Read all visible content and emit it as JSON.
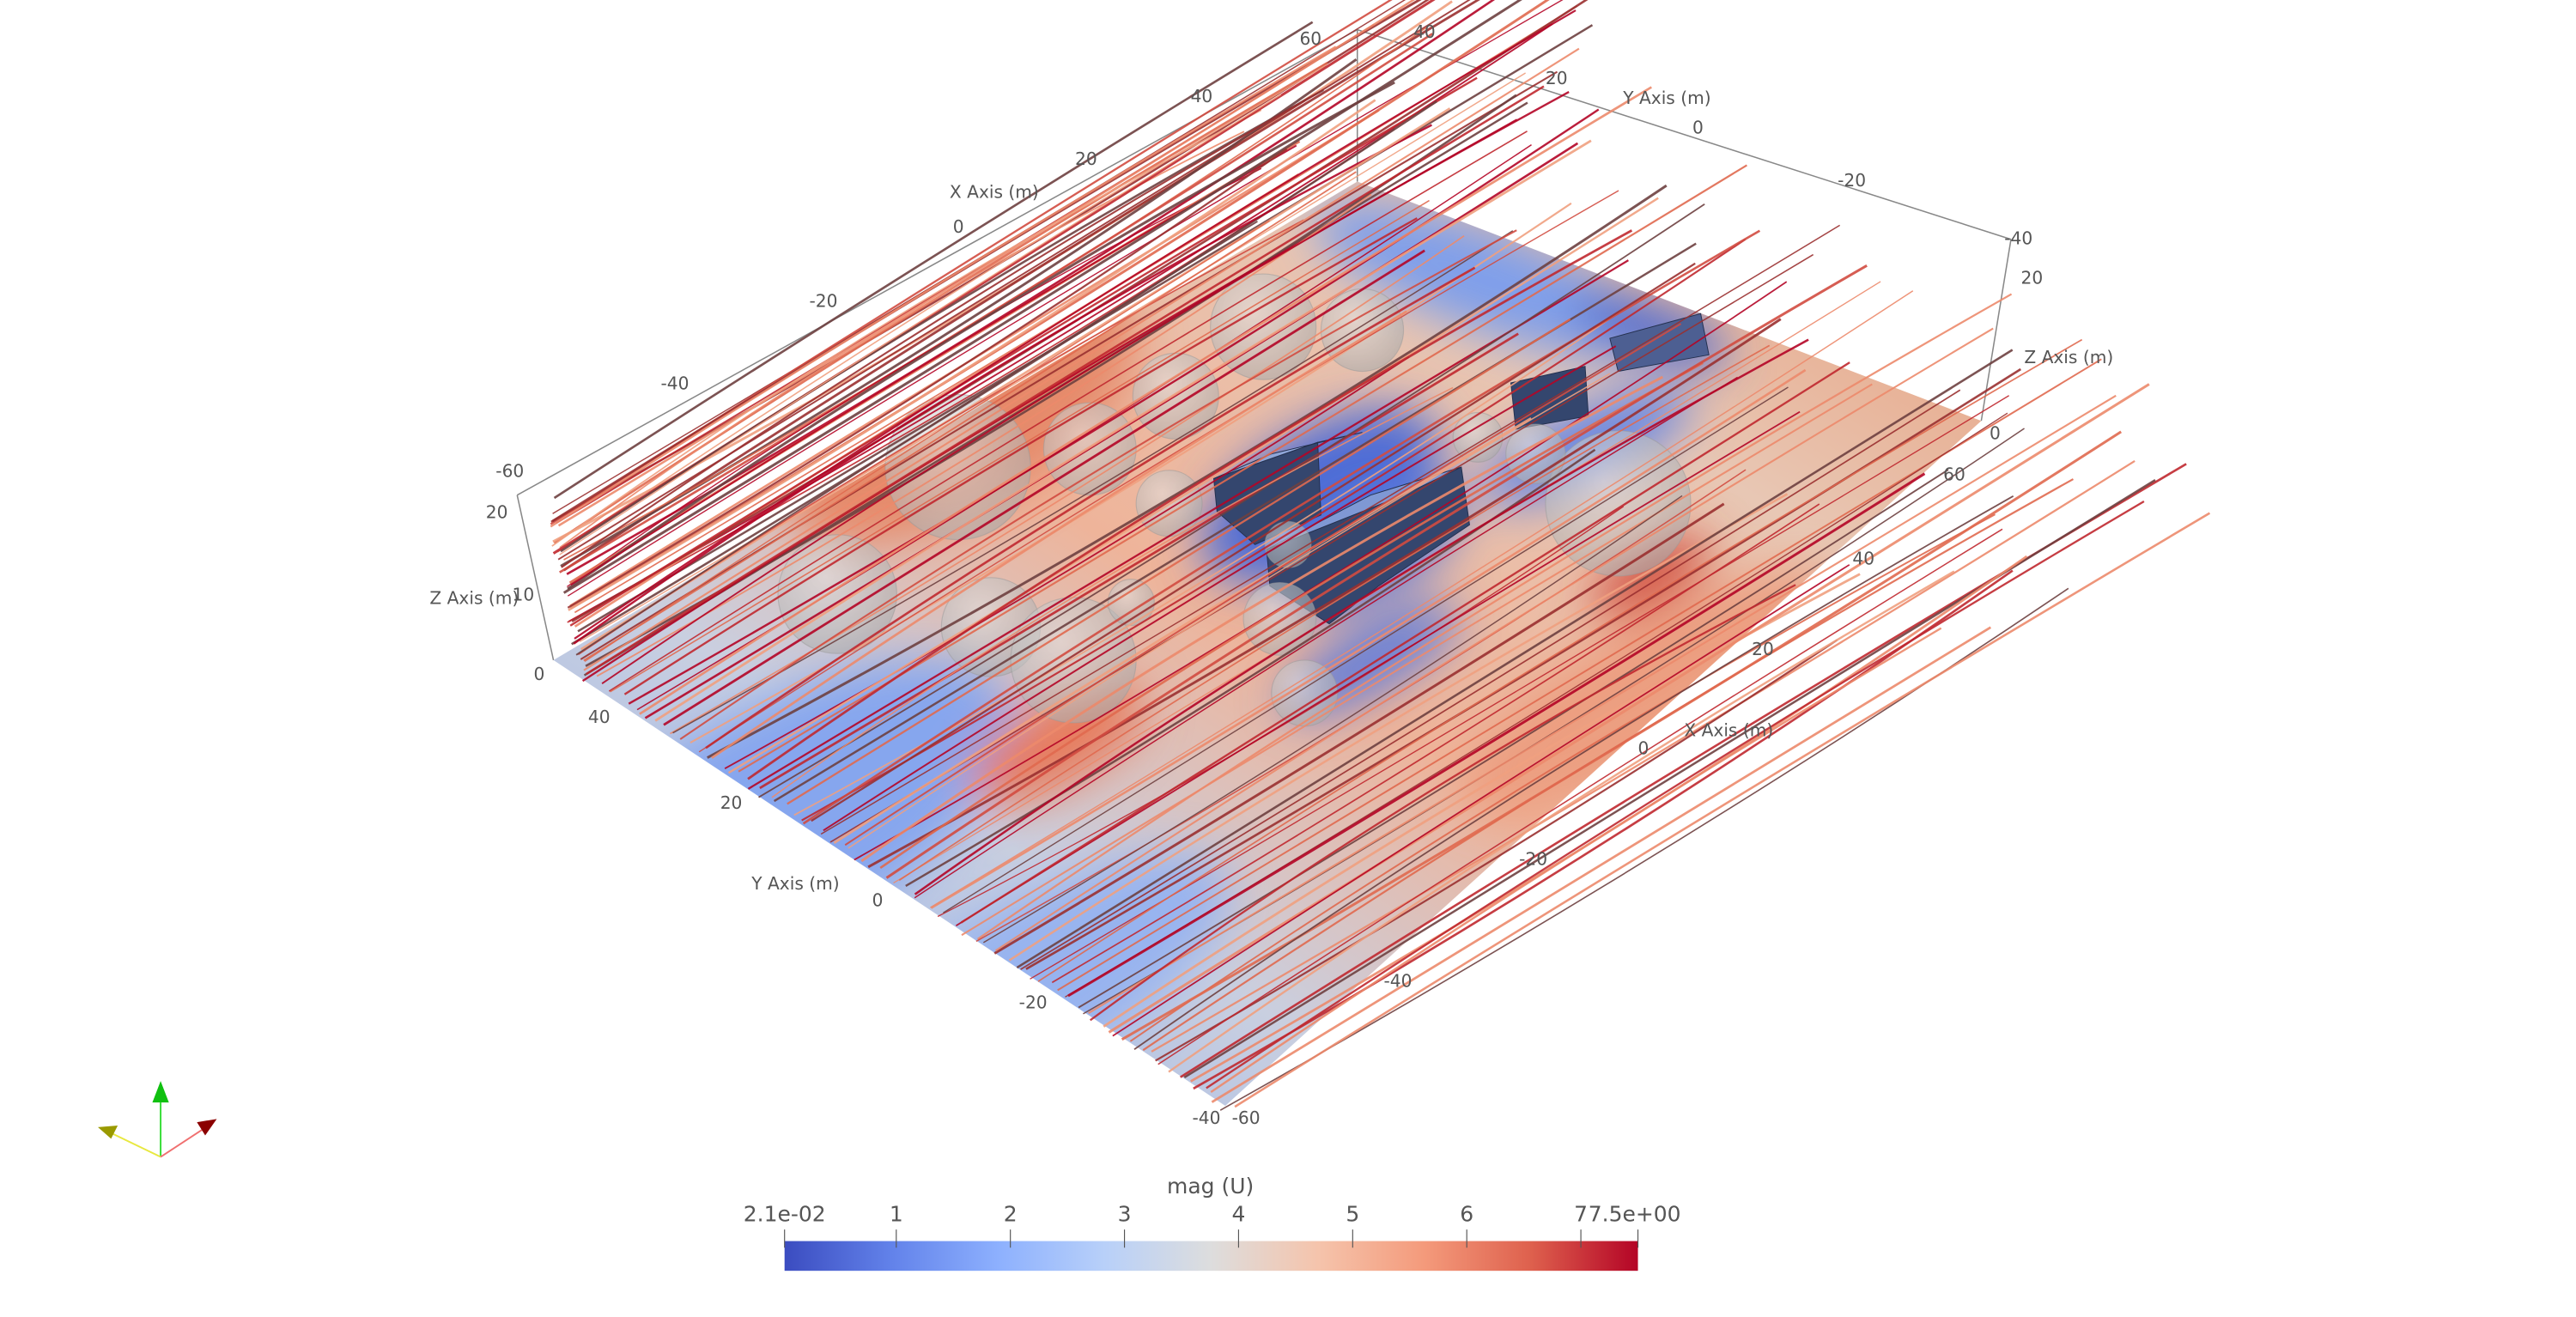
{
  "viewer": {
    "axes": {
      "x_title": "X Axis (m)",
      "y_title": "Y Axis (m)",
      "z_title": "Z Axis (m)",
      "x_back_ticks": [
        "-60",
        "-40",
        "-20",
        "0",
        "20",
        "40",
        "60"
      ],
      "y_back_ticks": [
        "40",
        "20",
        "0",
        "-20",
        "-40"
      ],
      "z_right_ticks": [
        "20",
        "0"
      ],
      "z_left_ticks": [
        "20",
        "10",
        "0"
      ],
      "y_front_ticks": [
        "40",
        "20",
        "0",
        "-20",
        "-40"
      ],
      "x_front_ticks": [
        "-60",
        "-40",
        "-20",
        "0",
        "20",
        "40",
        "60"
      ]
    },
    "orientation_widget": {
      "x_color": "#8b0000",
      "y_color": "#9a9a00",
      "z_color": "#00c000"
    },
    "sphere_color": "#c8c8c8",
    "building_color": "#34466e"
  },
  "colorbar": {
    "title": "mag (U)",
    "min": 0.021,
    "max": 7.5,
    "min_label": "2.1e-02",
    "max_label": "7.5e+00",
    "ticks": [
      1,
      2,
      3,
      4,
      5,
      6,
      7
    ],
    "tick_labels": [
      "1",
      "2",
      "3",
      "4",
      "5",
      "6",
      "7"
    ],
    "colormap": [
      "#3b4cc0",
      "#6282ea",
      "#8db0fe",
      "#b8d0f9",
      "#dddddd",
      "#f5c4ac",
      "#f49a7b",
      "#de604d",
      "#b40426"
    ]
  }
}
